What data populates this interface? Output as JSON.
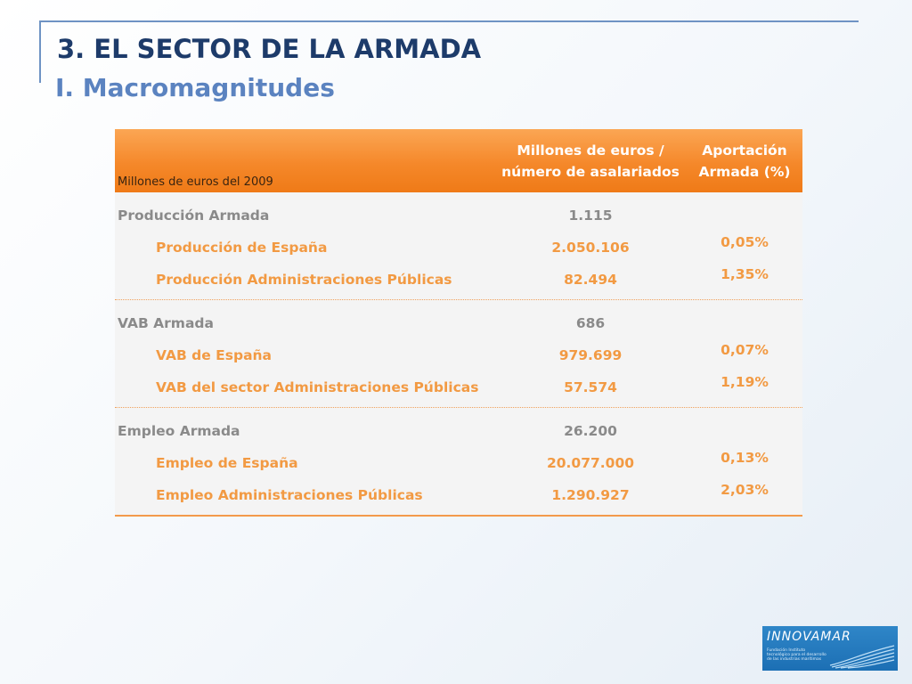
{
  "slide": {
    "title": "3. EL SECTOR DE LA ARMADA",
    "subtitle": "I. Macromagnitudes"
  },
  "table": {
    "corner_label": "Millones de euros del 2009",
    "col_millones": "Millones de euros / número de asalariados",
    "col_aportacion": "Aportación Armada (%)",
    "groups": [
      {
        "rows": [
          {
            "label": "Producción Armada",
            "value": "1.115",
            "pct": ""
          },
          {
            "label": "Producción de España",
            "value": "2.050.106",
            "pct": "0,05%"
          },
          {
            "label": "Producción Administraciones Públicas",
            "value": "82.494",
            "pct": "1,35%"
          }
        ]
      },
      {
        "rows": [
          {
            "label": "VAB Armada",
            "value": "686",
            "pct": ""
          },
          {
            "label": "VAB de España",
            "value": "979.699",
            "pct": "0,07%"
          },
          {
            "label": "VAB del sector Administraciones Públicas",
            "value": "57.574",
            "pct": "1,19%"
          }
        ]
      },
      {
        "rows": [
          {
            "label": "Empleo Armada",
            "value": "26.200",
            "pct": ""
          },
          {
            "label": "Empleo de España",
            "value": "20.077.000",
            "pct": "0,13%"
          },
          {
            "label": "Empleo Administraciones Públicas",
            "value": "1.290.927",
            "pct": "2,03%"
          }
        ]
      }
    ]
  },
  "logo": {
    "brand": "INNOVAMAR",
    "tagline": "Fundación Instituto tecnológico para el desarrollo de las industrias marítimas",
    "icon": "wave-icon",
    "color": "#1c6fb4"
  }
}
